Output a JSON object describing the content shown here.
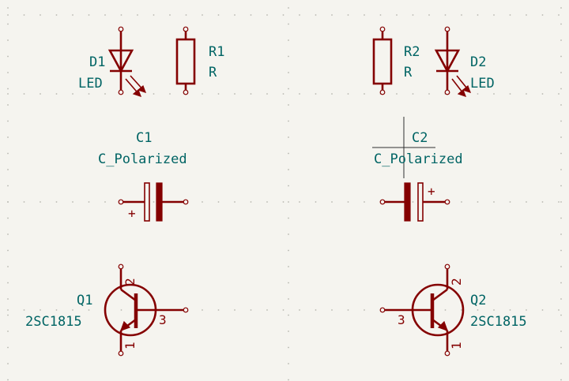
{
  "schematic": {
    "colors": {
      "background": "#f5f4ef",
      "symbol": "#840000",
      "field_text": "#006464",
      "grid_dot": "#b8b8b0",
      "cursor": "#303030"
    },
    "components": [
      {
        "id": "D1",
        "ref": "D1",
        "value": "LED"
      },
      {
        "id": "R1",
        "ref": "R1",
        "value": "R"
      },
      {
        "id": "R2",
        "ref": "R2",
        "value": "R"
      },
      {
        "id": "D2",
        "ref": "D2",
        "value": "LED"
      },
      {
        "id": "C1",
        "ref": "C1",
        "value": "C_Polarized",
        "polarity": "+"
      },
      {
        "id": "C2",
        "ref": "C2",
        "value": "C_Polarized",
        "polarity": "+"
      },
      {
        "id": "Q1",
        "ref": "Q1",
        "value": "2SC1815",
        "pins": [
          "2",
          "3",
          "1"
        ]
      },
      {
        "id": "Q2",
        "ref": "Q2",
        "value": "2SC1815",
        "pins": [
          "2",
          "3",
          "1"
        ]
      }
    ]
  }
}
